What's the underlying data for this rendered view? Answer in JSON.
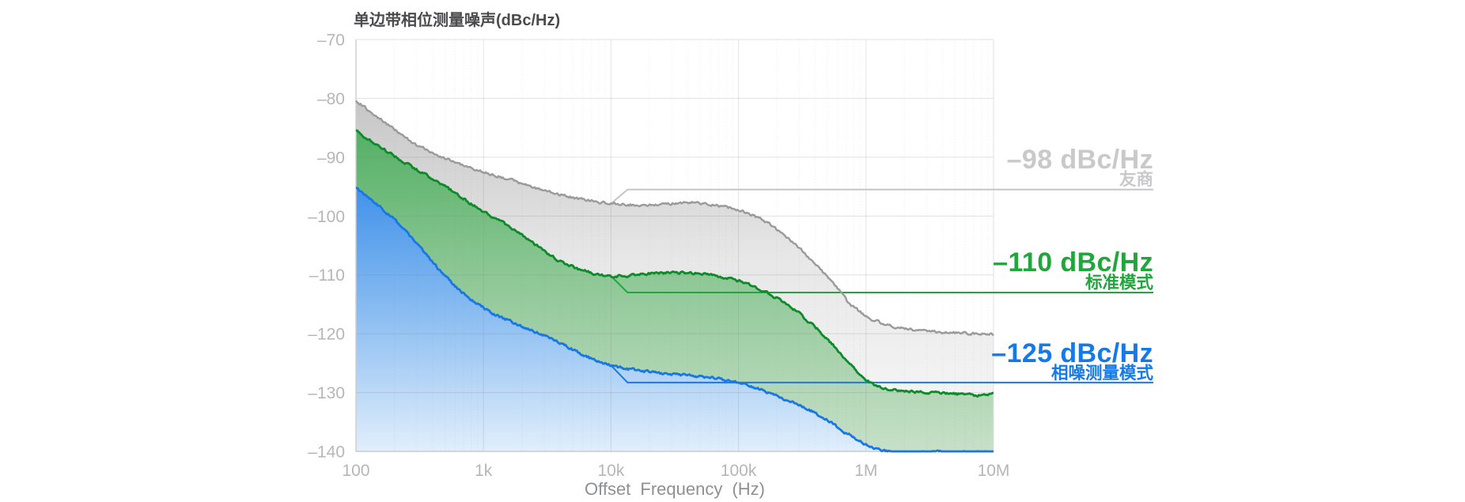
{
  "page": {
    "background": "#ffffff"
  },
  "title": "单边带相位测量噪声(dBc/Hz)",
  "axes": {
    "x_label": "Offset Frequency (Hz)",
    "x_ticks": [
      {
        "f": 100,
        "label": "100"
      },
      {
        "f": 1000,
        "label": "1k"
      },
      {
        "f": 10000,
        "label": "10k"
      },
      {
        "f": 100000,
        "label": "100k"
      },
      {
        "f": 1000000,
        "label": "1M"
      },
      {
        "f": 10000000,
        "label": "10M"
      }
    ],
    "y_ticks": [
      {
        "v": -70,
        "label": "–70"
      },
      {
        "v": -80,
        "label": "–80"
      },
      {
        "v": -90,
        "label": "–90"
      },
      {
        "v": -100,
        "label": "–100"
      },
      {
        "v": -110,
        "label": "–110"
      },
      {
        "v": -120,
        "label": "–120"
      },
      {
        "v": -130,
        "label": "–130"
      },
      {
        "v": -140,
        "label": "–140"
      }
    ]
  },
  "chart_data": {
    "type": "area",
    "title": "单边带相位测量噪声(dBc/Hz)",
    "xlabel": "Offset Frequency (Hz)",
    "ylabel": "dBc/Hz",
    "x_scale": "log",
    "xlim": [
      100,
      10000000
    ],
    "ylim": [
      -140,
      -70
    ],
    "grid": true,
    "legend_position": "right-callouts",
    "series": [
      {
        "name": "友商",
        "label": "–98 dBc/Hz",
        "sublabel": "友商",
        "value_at_10kHz_dbc_hz": -98,
        "curve_color": "#9a9a9a",
        "line_color": "#c6c6c6",
        "label_color": "#c9c9cb",
        "fill_gradient": [
          "#c6c6c6",
          "#e7e7e7",
          "#f9f9f9"
        ],
        "points": [
          [
            100,
            -80.4
          ],
          [
            140,
            -82.8
          ],
          [
            200,
            -85.3
          ],
          [
            300,
            -88.0
          ],
          [
            500,
            -90.2
          ],
          [
            800,
            -91.9
          ],
          [
            1500,
            -93.6
          ],
          [
            2500,
            -95.2
          ],
          [
            4000,
            -96.4
          ],
          [
            6000,
            -97.2
          ],
          [
            9000,
            -97.8
          ],
          [
            12000,
            -98.0
          ],
          [
            18000,
            -98.2
          ],
          [
            30000,
            -97.9
          ],
          [
            45000,
            -97.7
          ],
          [
            65000,
            -98.1
          ],
          [
            85000,
            -98.6
          ],
          [
            110000,
            -99.3
          ],
          [
            140000,
            -100.2
          ],
          [
            175000,
            -101.3
          ],
          [
            220000,
            -102.9
          ],
          [
            285000,
            -105.0
          ],
          [
            360000,
            -107.2
          ],
          [
            455000,
            -109.4
          ],
          [
            570000,
            -111.7
          ],
          [
            730000,
            -114.8
          ],
          [
            900000,
            -116.3
          ],
          [
            1100000,
            -117.5
          ],
          [
            1500000,
            -118.6
          ],
          [
            2000000,
            -119.1
          ],
          [
            3000000,
            -119.6
          ],
          [
            4500000,
            -119.8
          ],
          [
            7000000,
            -120.0
          ],
          [
            10000000,
            -120.1
          ]
        ]
      },
      {
        "name": "标准模式",
        "label": "–110 dBc/Hz",
        "sublabel": "标准模式",
        "value_at_10kHz_dbc_hz": -110,
        "curve_color": "#0e8a2b",
        "line_color": "#21a53c",
        "label_color": "#21a53c",
        "fill_gradient": [
          "#54b065",
          "#8dc795",
          "#c7e0c8"
        ],
        "points": [
          [
            100,
            -85.5
          ],
          [
            140,
            -87.6
          ],
          [
            200,
            -89.8
          ],
          [
            300,
            -92.1
          ],
          [
            500,
            -95.0
          ],
          [
            800,
            -97.9
          ],
          [
            1200,
            -100.2
          ],
          [
            1800,
            -102.5
          ],
          [
            2600,
            -105.0
          ],
          [
            3900,
            -107.6
          ],
          [
            5500,
            -109.0
          ],
          [
            7500,
            -109.8
          ],
          [
            10000,
            -110.2
          ],
          [
            14000,
            -110.1
          ],
          [
            20000,
            -109.8
          ],
          [
            30000,
            -109.6
          ],
          [
            45000,
            -109.7
          ],
          [
            60000,
            -110.0
          ],
          [
            80000,
            -110.5
          ],
          [
            100000,
            -111.0
          ],
          [
            130000,
            -112.0
          ],
          [
            175000,
            -113.2
          ],
          [
            230000,
            -114.7
          ],
          [
            285000,
            -116.1
          ],
          [
            350000,
            -117.8
          ],
          [
            420000,
            -119.3
          ],
          [
            520000,
            -121.3
          ],
          [
            650000,
            -123.6
          ],
          [
            810000,
            -125.9
          ],
          [
            1000000,
            -127.9
          ],
          [
            1200000,
            -128.9
          ],
          [
            1500000,
            -129.4
          ],
          [
            2000000,
            -129.7
          ],
          [
            3000000,
            -130.0
          ],
          [
            4000000,
            -130.1
          ],
          [
            5500000,
            -130.3
          ],
          [
            7000000,
            -130.5
          ],
          [
            8500000,
            -130.3
          ],
          [
            10000000,
            -130.2
          ]
        ]
      },
      {
        "name": "相噪测量模式",
        "label": "–125 dBc/Hz",
        "sublabel": "相噪测量模式",
        "value_at_10kHz_dbc_hz": -125,
        "curve_color": "#1777e6",
        "line_color": "#1679e8",
        "label_color": "#1679e8",
        "fill_gradient": [
          "#4292ea",
          "#86baf1",
          "#e1eefc"
        ],
        "points": [
          [
            100,
            -95.2
          ],
          [
            140,
            -97.6
          ],
          [
            200,
            -100.6
          ],
          [
            280,
            -104.0
          ],
          [
            380,
            -107.3
          ],
          [
            500,
            -110.3
          ],
          [
            650,
            -112.6
          ],
          [
            850,
            -114.6
          ],
          [
            1100,
            -116.2
          ],
          [
            1400,
            -117.3
          ],
          [
            1800,
            -118.3
          ],
          [
            2400,
            -119.5
          ],
          [
            3600,
            -121.1
          ],
          [
            5000,
            -122.7
          ],
          [
            7300,
            -124.4
          ],
          [
            10000,
            -125.4
          ],
          [
            13000,
            -125.9
          ],
          [
            18000,
            -126.4
          ],
          [
            25000,
            -126.8
          ],
          [
            35000,
            -127.0
          ],
          [
            50000,
            -127.2
          ],
          [
            70000,
            -127.6
          ],
          [
            90000,
            -128.1
          ],
          [
            110000,
            -128.5
          ],
          [
            140000,
            -129.3
          ],
          [
            175000,
            -130.0
          ],
          [
            220000,
            -131.0
          ],
          [
            280000,
            -131.8
          ],
          [
            350000,
            -132.8
          ],
          [
            450000,
            -134.1
          ],
          [
            560000,
            -135.4
          ],
          [
            700000,
            -136.9
          ],
          [
            850000,
            -137.9
          ],
          [
            1000000,
            -138.8
          ],
          [
            1200000,
            -139.5
          ],
          [
            1500000,
            -140.0
          ],
          [
            2000000,
            -140.2
          ],
          [
            3000000,
            -140.1
          ],
          [
            5000000,
            -140.2
          ],
          [
            7000000,
            -140.0
          ],
          [
            10000000,
            -140.2
          ]
        ]
      }
    ]
  }
}
